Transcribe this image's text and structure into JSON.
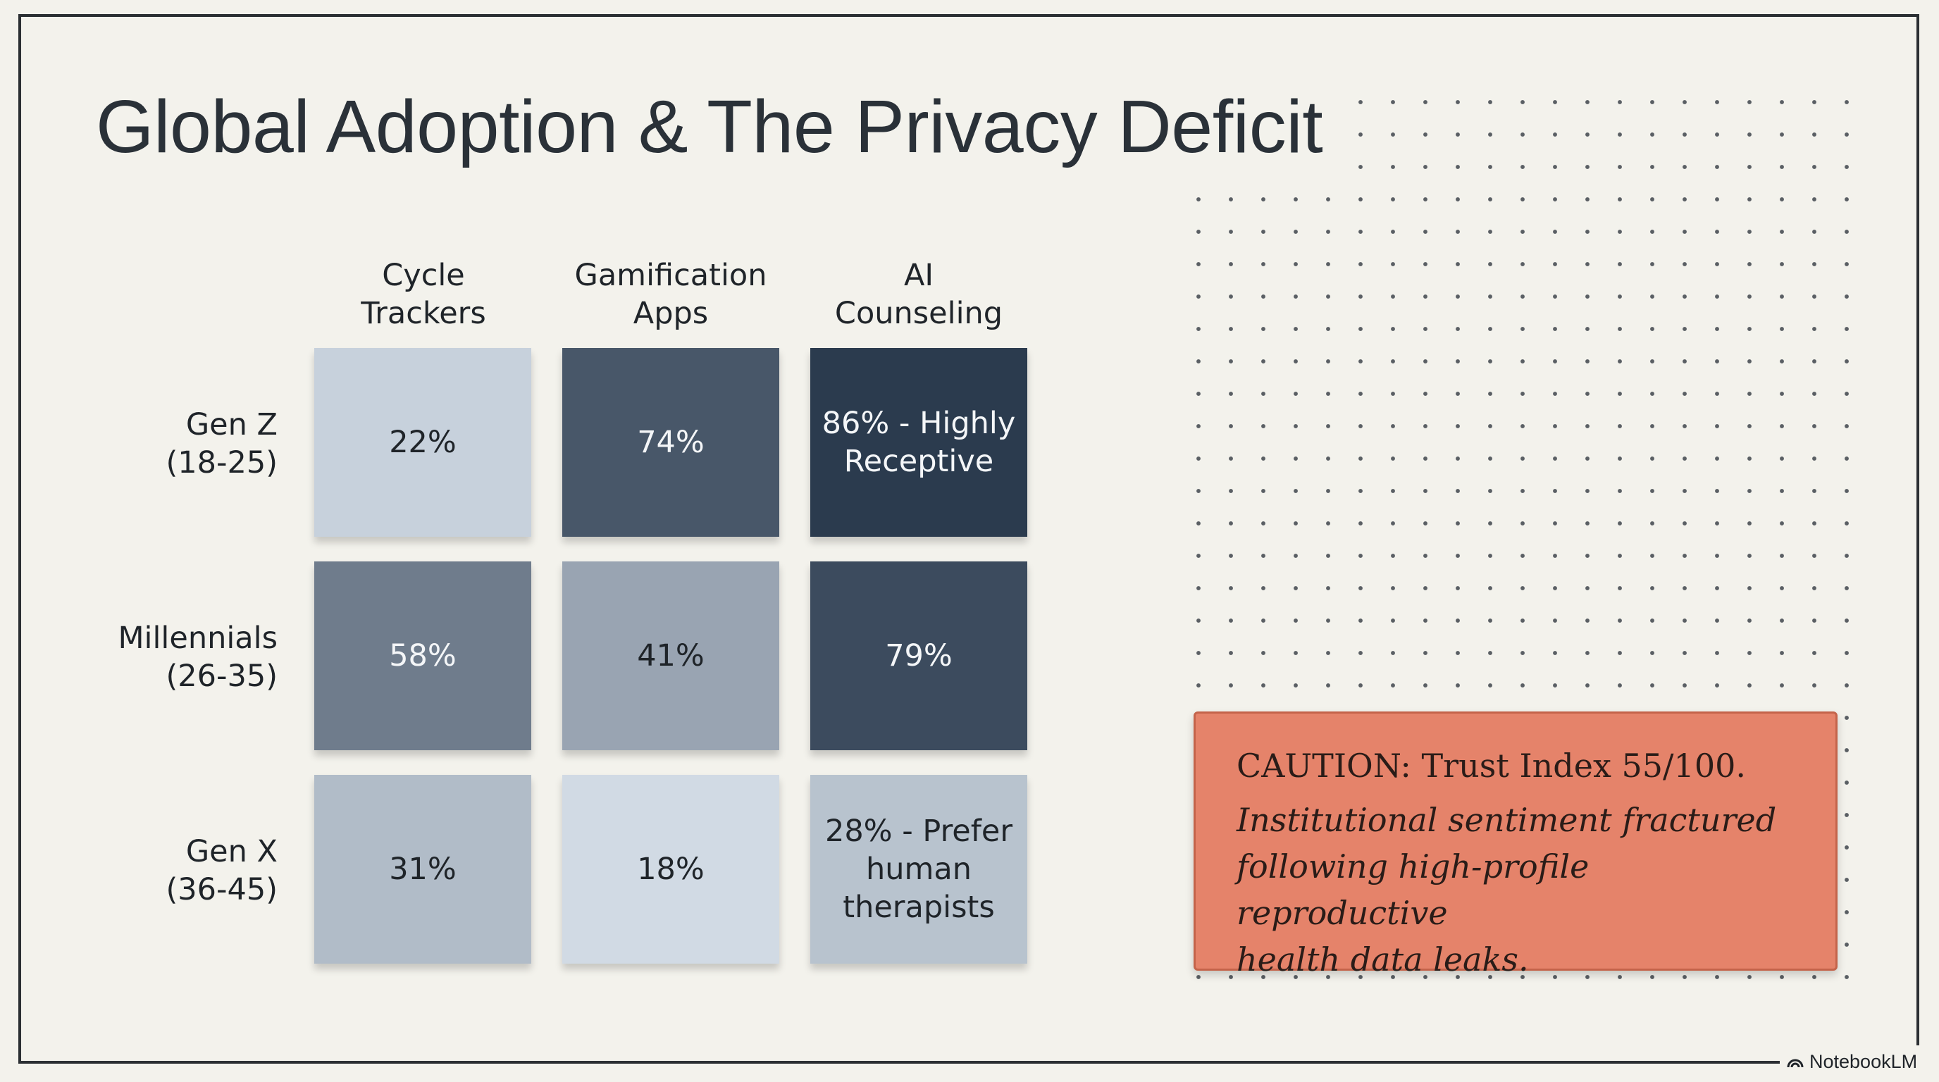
{
  "slide": {
    "title": "Global Adoption & The Privacy Deficit"
  },
  "chart_data": {
    "type": "heatmap",
    "title": "Global Adoption & The Privacy Deficit",
    "columns": [
      {
        "line1": "Cycle",
        "line2": "Trackers"
      },
      {
        "line1": "Gamification",
        "line2": "Apps"
      },
      {
        "line1": "AI",
        "line2": "Counseling"
      }
    ],
    "rows": [
      {
        "line1": "Gen Z",
        "line2": "(18-25)"
      },
      {
        "line1": "Millennials",
        "line2": "(26-35)"
      },
      {
        "line1": "Gen X",
        "line2": "(36-45)"
      }
    ],
    "values": [
      [
        22,
        74,
        86
      ],
      [
        58,
        41,
        79
      ],
      [
        31,
        18,
        28
      ]
    ],
    "cell_labels": [
      [
        [
          "22%"
        ],
        [
          "74%"
        ],
        [
          "86% - Highly",
          "Receptive"
        ]
      ],
      [
        [
          "58%"
        ],
        [
          "41%"
        ],
        [
          "79%"
        ]
      ],
      [
        [
          "31%"
        ],
        [
          "18%"
        ],
        [
          "28% - Prefer",
          "human",
          "therapists"
        ]
      ]
    ],
    "color_scale": {
      "low": "#d8e1eb",
      "high": "#26364a"
    }
  },
  "caution": {
    "heading": "CAUTION: Trust Index 55/100.",
    "body_lines": [
      "Institutional sentiment fractured",
      "following high-profile reproductive",
      "health data leaks."
    ]
  },
  "branding": {
    "name": "NotebookLM",
    "icon": "notebooklm-icon"
  },
  "colors": {
    "background": "#f3f2ec",
    "caution_fill": "#e5836a",
    "text_dark": "#1f2429"
  }
}
